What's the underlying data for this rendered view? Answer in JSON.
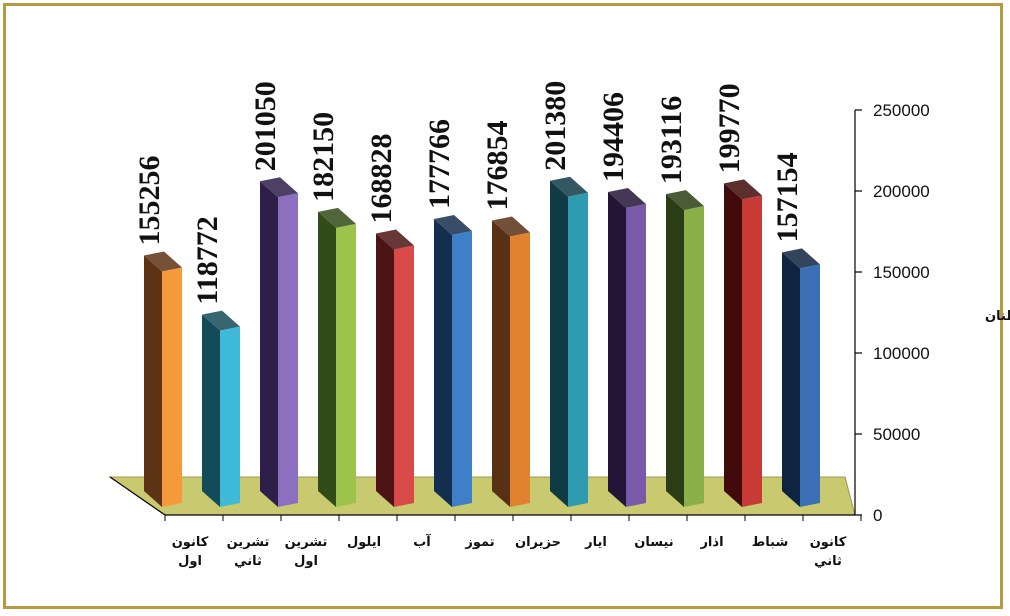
{
  "chart_data": {
    "type": "bar",
    "categories": [
      [
        "كانون",
        "اول"
      ],
      [
        "تشرين",
        "ثاني"
      ],
      [
        "تشرين",
        "اول"
      ],
      [
        "ايلول"
      ],
      [
        "آب"
      ],
      [
        "تموز"
      ],
      [
        "حزيران"
      ],
      [
        "ايار"
      ],
      [
        "نيسان"
      ],
      [
        "اذار"
      ],
      [
        "شباط"
      ],
      [
        "كانون",
        "ثاني"
      ]
    ],
    "values": [
      155256,
      118772,
      201050,
      182150,
      168828,
      177766,
      176854,
      201380,
      194406,
      193116,
      199770,
      157154
    ],
    "data_labels": [
      "155256",
      "118772",
      "201050",
      "182150",
      "168828",
      "177766",
      "176854",
      "201380",
      "194406",
      "193116",
      "199770",
      "157154"
    ],
    "title": "",
    "xlabel": "",
    "ylabel": "عدد الاطنان",
    "ylim": [
      0,
      250000
    ],
    "yticks": [
      "0",
      "50000",
      "100000",
      "150000",
      "200000",
      "250000"
    ],
    "grid": false,
    "legend": "none"
  },
  "colors": {
    "frame": "#b89a3e",
    "floor": "#c9c970",
    "bars": [
      {
        "front": "#f59a3a",
        "side": "#5e3214"
      },
      {
        "front": "#3fb9d8",
        "side": "#144b58"
      },
      {
        "front": "#8c6fbe",
        "side": "#2d1f4a"
      },
      {
        "front": "#9cc34a",
        "side": "#334a19"
      },
      {
        "front": "#d84a48",
        "side": "#4c1414"
      },
      {
        "front": "#3f7fc8",
        "side": "#142e4d"
      },
      {
        "front": "#e0822e",
        "side": "#583016"
      },
      {
        "front": "#2f9bb3",
        "side": "#0f3b45"
      },
      {
        "front": "#7a5aa8",
        "side": "#241538"
      },
      {
        "front": "#8bb04a",
        "side": "#2b3d14"
      },
      {
        "front": "#c83a36",
        "side": "#420b0b"
      },
      {
        "front": "#3a6fb6",
        "side": "#0e2440"
      }
    ]
  }
}
